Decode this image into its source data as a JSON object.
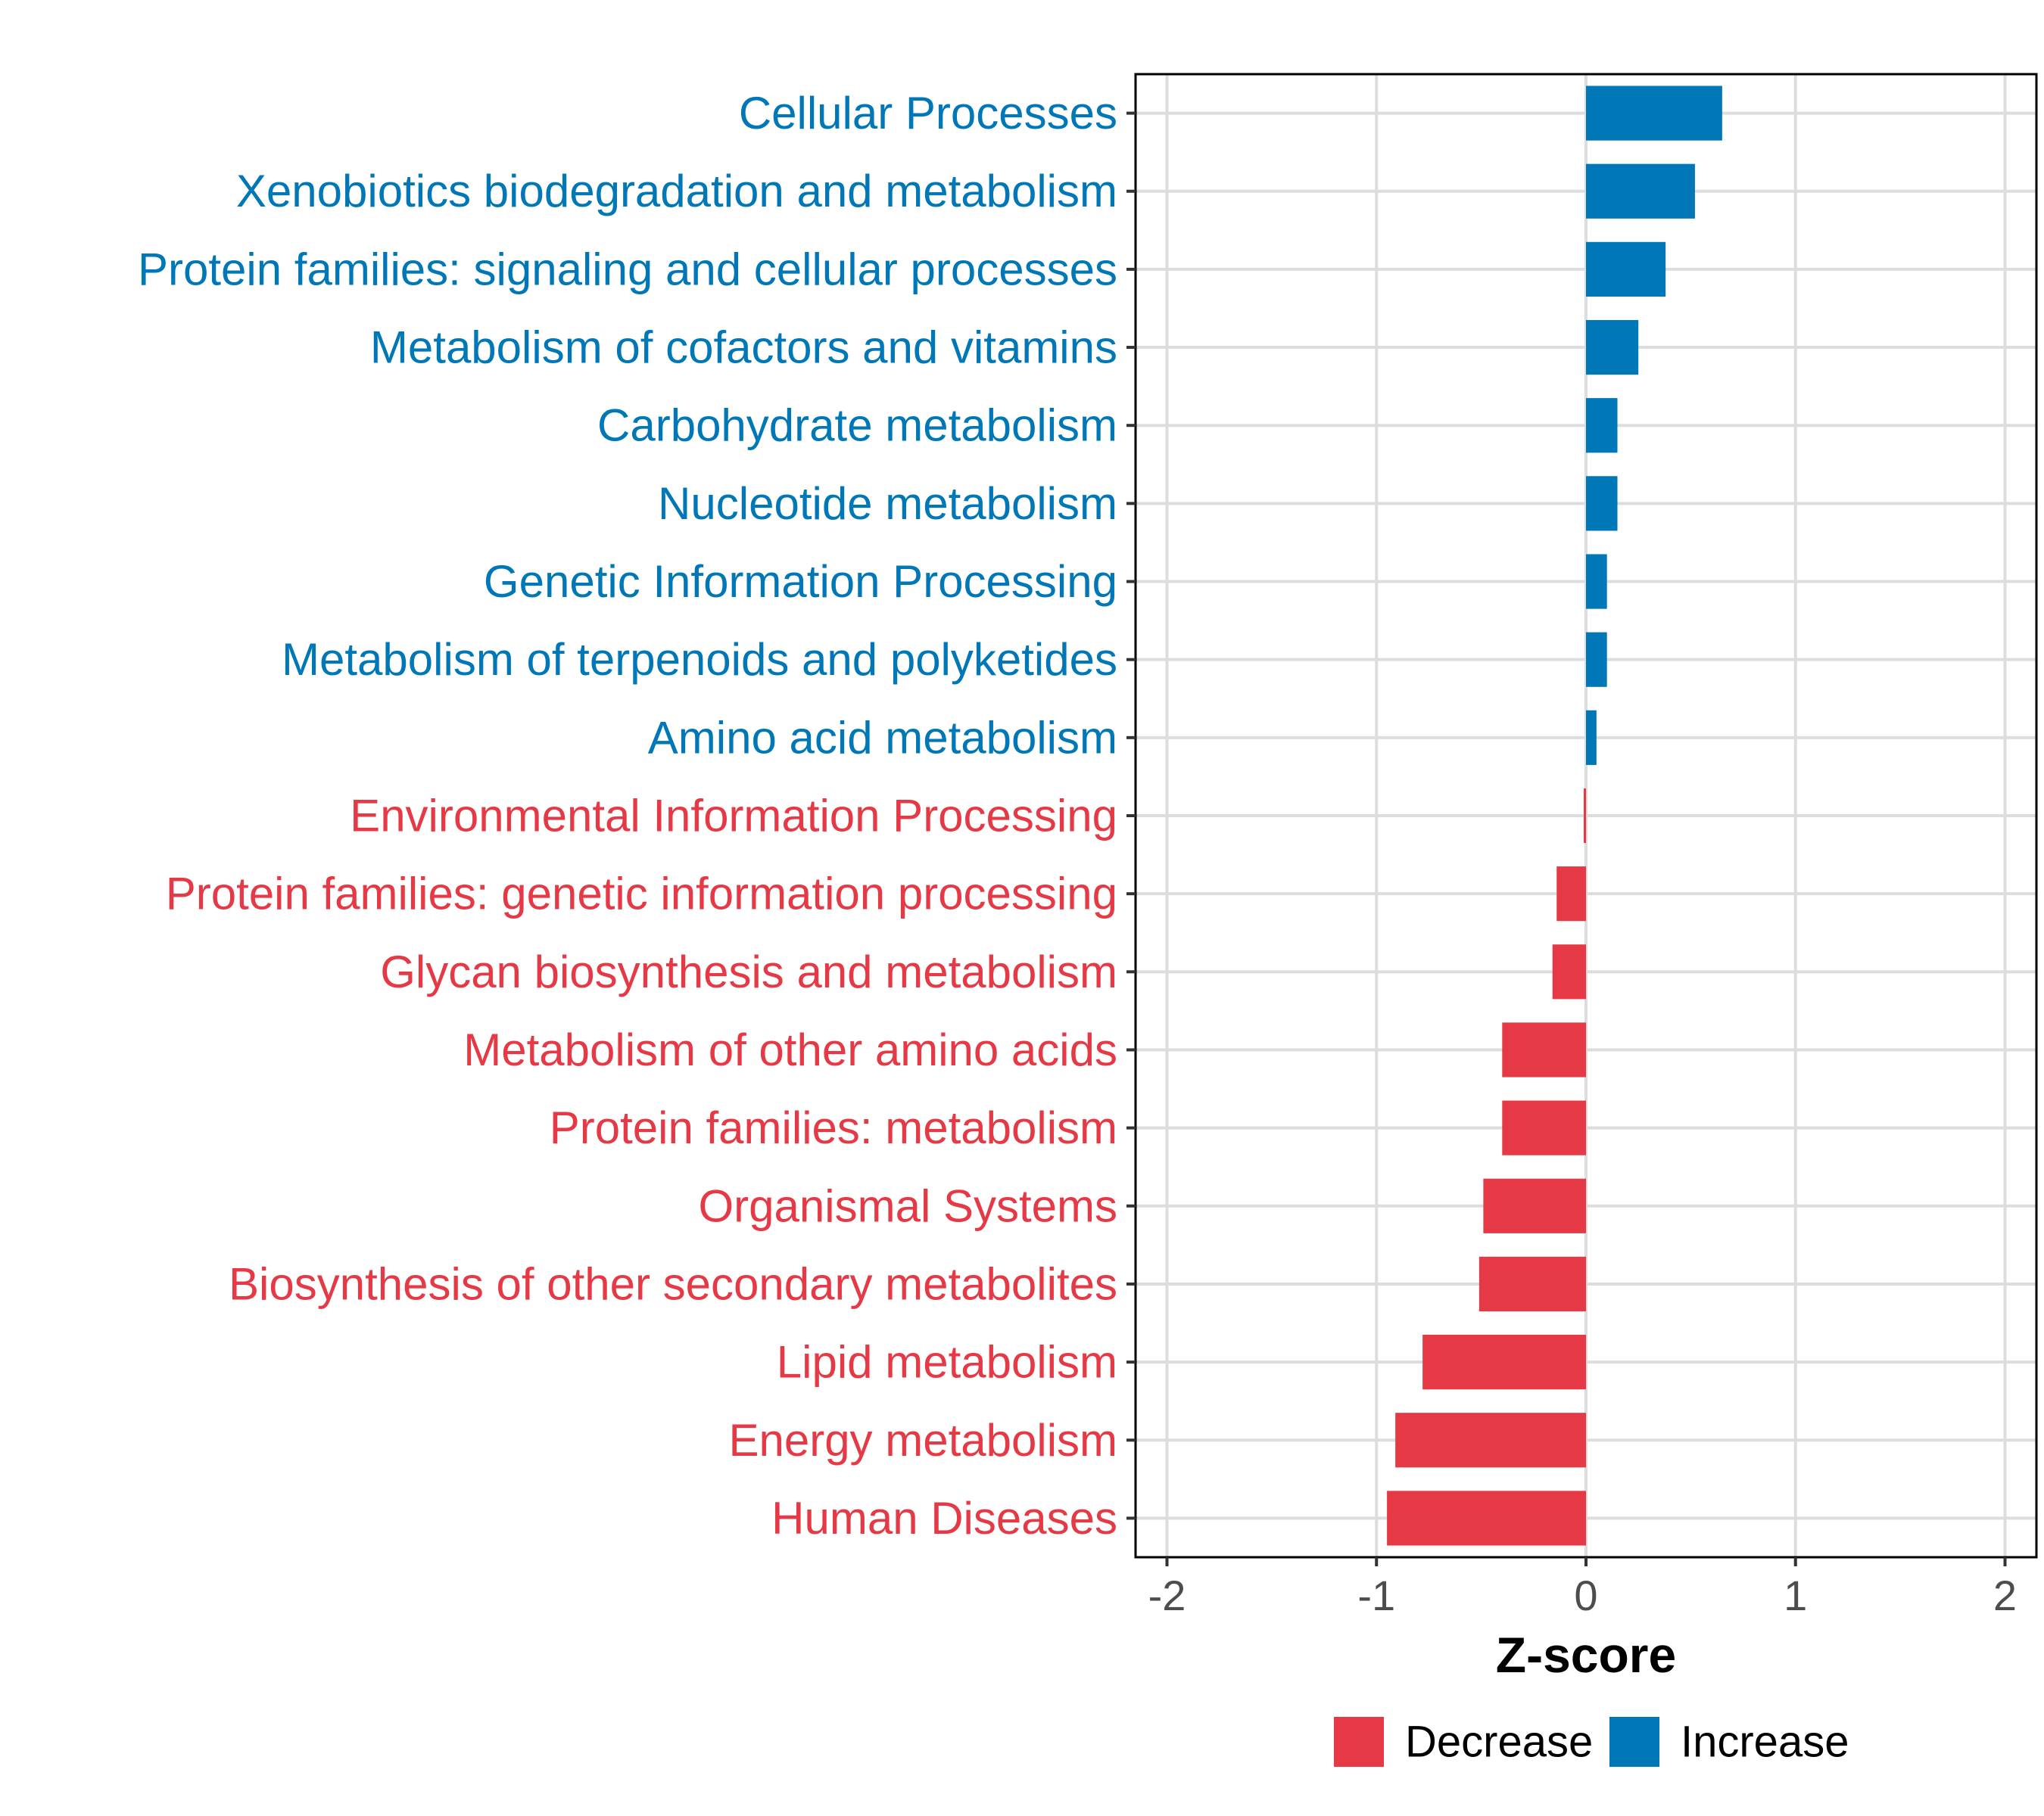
{
  "chart_data": {
    "type": "bar",
    "orientation": "horizontal",
    "title": "",
    "xlabel": "Z-score",
    "ylabel": "",
    "xlim": [
      -2.15,
      2.15
    ],
    "x_ticks": [
      -2,
      -1,
      0,
      1,
      2
    ],
    "x_tick_labels": [
      "-2",
      "-1",
      "0",
      "1",
      "2"
    ],
    "grid": true,
    "legend_position": "bottom",
    "colors": {
      "Decrease": "#E63946",
      "Increase": "#0077B6"
    },
    "categories": [
      "Cellular Processes",
      "Xenobiotics biodegradation and metabolism",
      "Protein families: signaling and cellular processes",
      "Metabolism of cofactors and vitamins",
      "Carbohydrate metabolism",
      "Nucleotide metabolism",
      "Genetic Information Processing",
      "Metabolism of terpenoids and polyketides",
      "Amino acid metabolism",
      "Environmental Information Processing",
      "Protein families: genetic information processing",
      "Glycan biosynthesis and metabolism",
      "Metabolism of other amino acids",
      "Protein families: metabolism",
      "Organismal Systems",
      "Biosynthesis of other secondary metabolites",
      "Lipid metabolism",
      "Energy metabolism",
      "Human Diseases"
    ],
    "values": [
      0.65,
      0.52,
      0.38,
      0.25,
      0.15,
      0.15,
      0.1,
      0.1,
      0.05,
      -0.01,
      -0.14,
      -0.16,
      -0.4,
      -0.4,
      -0.49,
      -0.51,
      -0.78,
      -0.91,
      -0.95
    ],
    "groups": [
      "Increase",
      "Increase",
      "Increase",
      "Increase",
      "Increase",
      "Increase",
      "Increase",
      "Increase",
      "Increase",
      "Decrease",
      "Decrease",
      "Decrease",
      "Decrease",
      "Decrease",
      "Decrease",
      "Decrease",
      "Decrease",
      "Decrease",
      "Decrease"
    ],
    "legend": [
      "Decrease",
      "Increase"
    ]
  }
}
